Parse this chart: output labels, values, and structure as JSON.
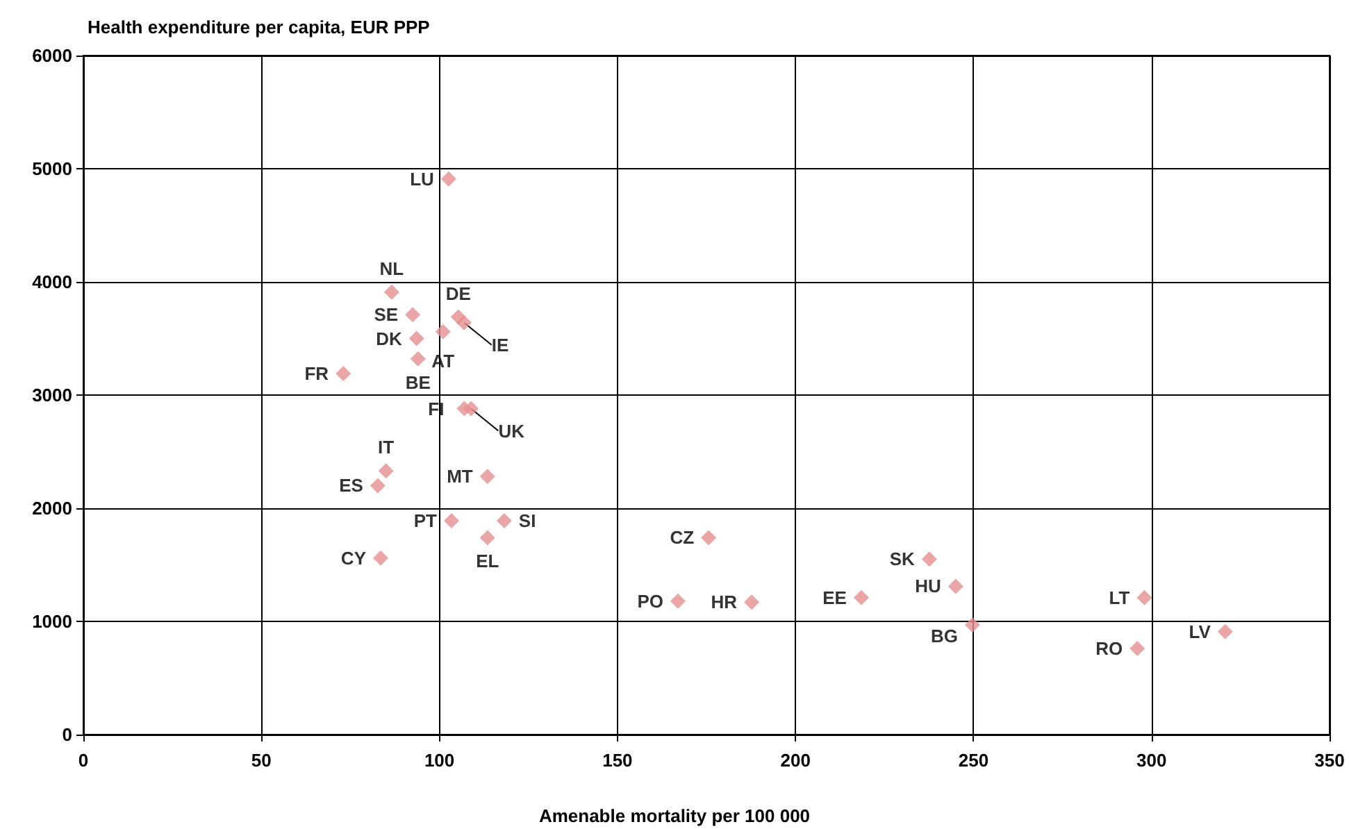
{
  "chart_data": {
    "type": "scatter",
    "xlabel": "Amenable mortality per 100 000",
    "ylabel": "Health expenditure per capita, EUR PPP",
    "x": [
      102.6,
      86.6,
      92.5,
      105.3,
      106.9,
      101,
      93.6,
      94,
      73,
      107,
      108.9,
      85,
      113.5,
      82.7,
      103.4,
      118.2,
      113.5,
      83.5,
      175.6,
      167,
      187.7,
      218.5,
      237.6,
      245,
      249.7,
      298,
      296,
      320.7
    ],
    "series": [
      {
        "color": "#e68f8f",
        "values": [
          4910,
          3910,
          3710,
          3690,
          3640,
          3560,
          3500,
          3320,
          3190,
          2880,
          2880,
          2330,
          2280,
          2200,
          1890,
          1890,
          1740,
          1560,
          1740,
          1180,
          1170,
          1210,
          1550,
          1310,
          970,
          1210,
          760,
          910
        ]
      }
    ],
    "annotations": [
      {
        "text": "LU",
        "x": 102.6,
        "y": 4910
      },
      {
        "text": "NL",
        "x": 86.6,
        "y": 3910
      },
      {
        "text": "SE",
        "x": 92.5,
        "y": 3710
      },
      {
        "text": "DE",
        "x": 105.3,
        "y": 3690
      },
      {
        "text": "IE",
        "x": 106.9,
        "y": 3640
      },
      {
        "text": "AT",
        "x": 101,
        "y": 3560
      },
      {
        "text": "DK",
        "x": 93.6,
        "y": 3500
      },
      {
        "text": "BE",
        "x": 94,
        "y": 3320
      },
      {
        "text": "FR",
        "x": 73,
        "y": 3190
      },
      {
        "text": "FI",
        "x": 107,
        "y": 2880
      },
      {
        "text": "UK",
        "x": 108.9,
        "y": 2880
      },
      {
        "text": "IT",
        "x": 85,
        "y": 2330
      },
      {
        "text": "MT",
        "x": 113.5,
        "y": 2280
      },
      {
        "text": "ES",
        "x": 82.7,
        "y": 2200
      },
      {
        "text": "PT",
        "x": 103.4,
        "y": 1890
      },
      {
        "text": "SI",
        "x": 118.2,
        "y": 1890
      },
      {
        "text": "EL",
        "x": 113.5,
        "y": 1740
      },
      {
        "text": "CY",
        "x": 83.5,
        "y": 1560
      },
      {
        "text": "CZ",
        "x": 175.6,
        "y": 1740
      },
      {
        "text": "PO",
        "x": 167,
        "y": 1180
      },
      {
        "text": "HR",
        "x": 187.7,
        "y": 1170
      },
      {
        "text": "EE",
        "x": 218.5,
        "y": 1210
      },
      {
        "text": "SK",
        "x": 237.6,
        "y": 1550
      },
      {
        "text": "HU",
        "x": 245,
        "y": 1310
      },
      {
        "text": "BG",
        "x": 249.7,
        "y": 970
      },
      {
        "text": "LT",
        "x": 298,
        "y": 1210
      },
      {
        "text": "RO",
        "x": 296,
        "y": 760
      },
      {
        "text": "LV",
        "x": 320.7,
        "y": 910
      }
    ],
    "xlim": [
      0,
      350
    ],
    "xticks": [
      0,
      50,
      100,
      150,
      200,
      250,
      300,
      350
    ],
    "ylim": [
      0,
      6000
    ],
    "yticks": [
      0,
      1000,
      2000,
      3000,
      4000,
      5000,
      6000
    ],
    "grid": true,
    "marker": "diamond"
  }
}
